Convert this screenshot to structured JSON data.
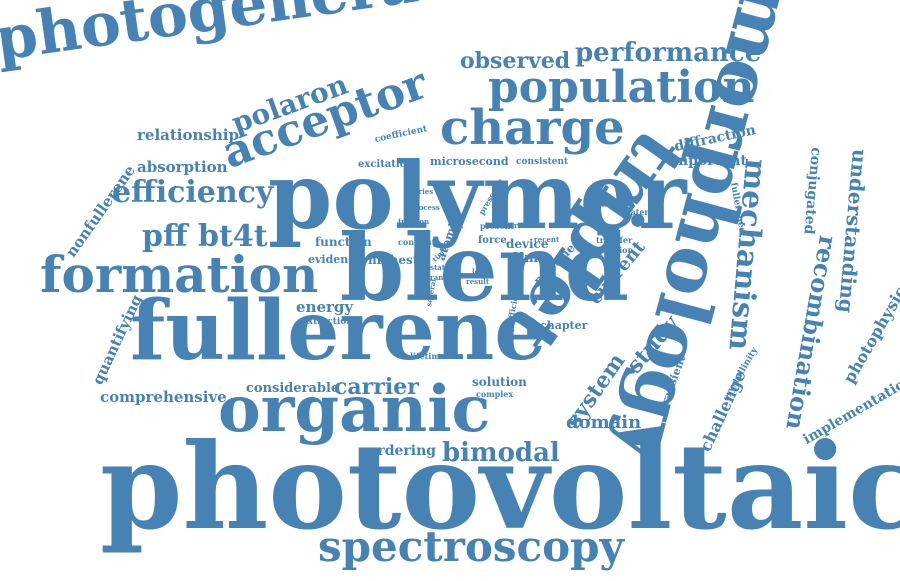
{
  "color": "#4682b4",
  "words": [
    "photovoltaic",
    "polymer",
    "fullerene",
    "blend",
    "organic",
    "morphology",
    "triplet",
    "photogeneration",
    "charge",
    "formation",
    "acceptor",
    "population",
    "spectroscopy",
    "mechanism",
    "performance",
    "efficiency",
    "recombination",
    "pff bt4t",
    "polaron",
    "observed",
    "bimodal",
    "carrier",
    "study",
    "understanding",
    "system",
    "photophysics",
    "relationship",
    "absorption",
    "quantifying",
    "nonfullerene",
    "comprehensive",
    "considerable",
    "domain",
    "current",
    "conjugated",
    "challenge",
    "implementation",
    "diffraction",
    "important",
    "energy",
    "ordering",
    "solution",
    "chapter",
    "function",
    "evidence",
    "highest",
    "atomic",
    "film",
    "pristine",
    "device",
    "microsecond",
    "excitation",
    "consistent",
    "coefficient",
    "transient",
    "crystallinity",
    "fullerenes",
    "material",
    "transfer",
    "addition",
    "lifetime",
    "extinction",
    "complex",
    "force",
    "contrast",
    "presence",
    "present",
    "recent",
    "efficient",
    "loss",
    "range",
    "state",
    "several",
    "series",
    "process",
    "result",
    "level",
    "time",
    "fraction",
    "rate"
  ]
}
